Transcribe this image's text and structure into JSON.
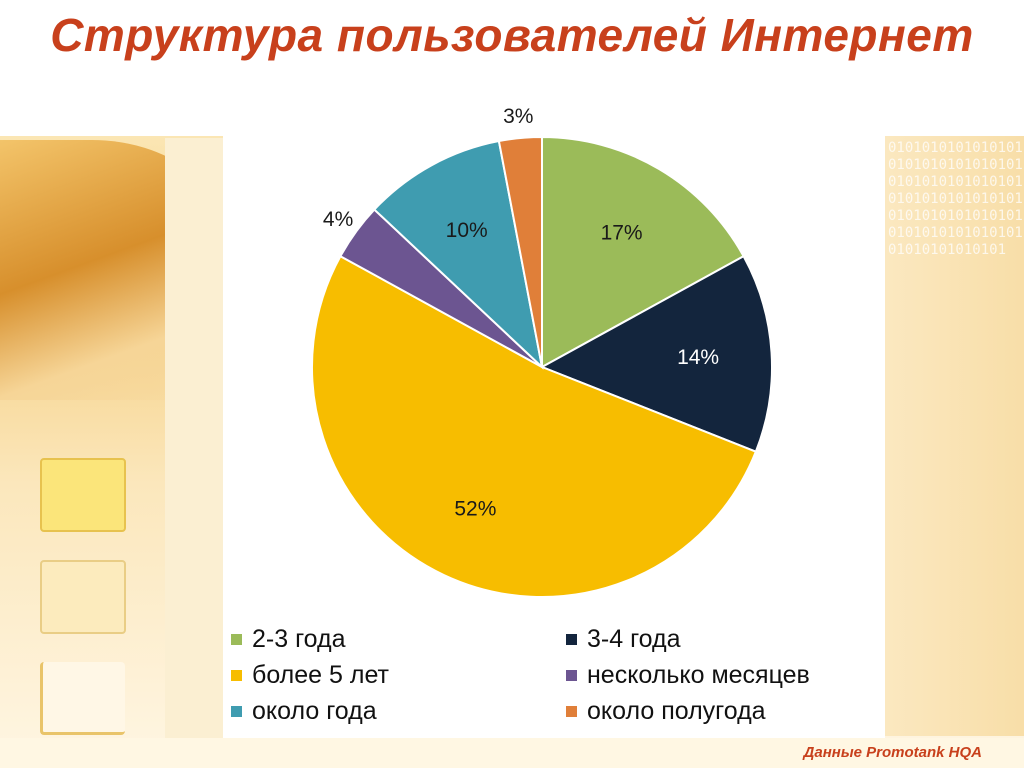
{
  "slide": {
    "title": "Структура пользователей Интернет",
    "source": "Данные Promotank HQA",
    "binary_text": "01010101010101010101010101010101010101010101010101010101010101010101010101010101010101010101010101010101010101"
  },
  "chart_data": {
    "type": "pie",
    "title": "",
    "start_angle_deg": 0,
    "direction": "clockwise",
    "slices": [
      {
        "name": "2-3 года",
        "value": 17,
        "label": "17%",
        "color": "#9bbb59"
      },
      {
        "name": "3-4 года",
        "value": 14,
        "label": "14%",
        "color": "#13253d"
      },
      {
        "name": "более 5 лет",
        "value": 52,
        "label": "52%",
        "color": "#f7bd00"
      },
      {
        "name": "несколько месяцев",
        "value": 4,
        "label": "4%",
        "color": "#6c5591"
      },
      {
        "name": "около года",
        "value": 10,
        "label": "10%",
        "color": "#3f9cb0"
      },
      {
        "name": "около полугода",
        "value": 3,
        "label": "3%",
        "color": "#e07f39"
      }
    ],
    "legend": {
      "position": "bottom",
      "columns": 2,
      "items": [
        "2-3 года",
        "3-4 года",
        "более 5 лет",
        "несколько месяцев",
        "около года",
        "около полугода"
      ]
    }
  }
}
